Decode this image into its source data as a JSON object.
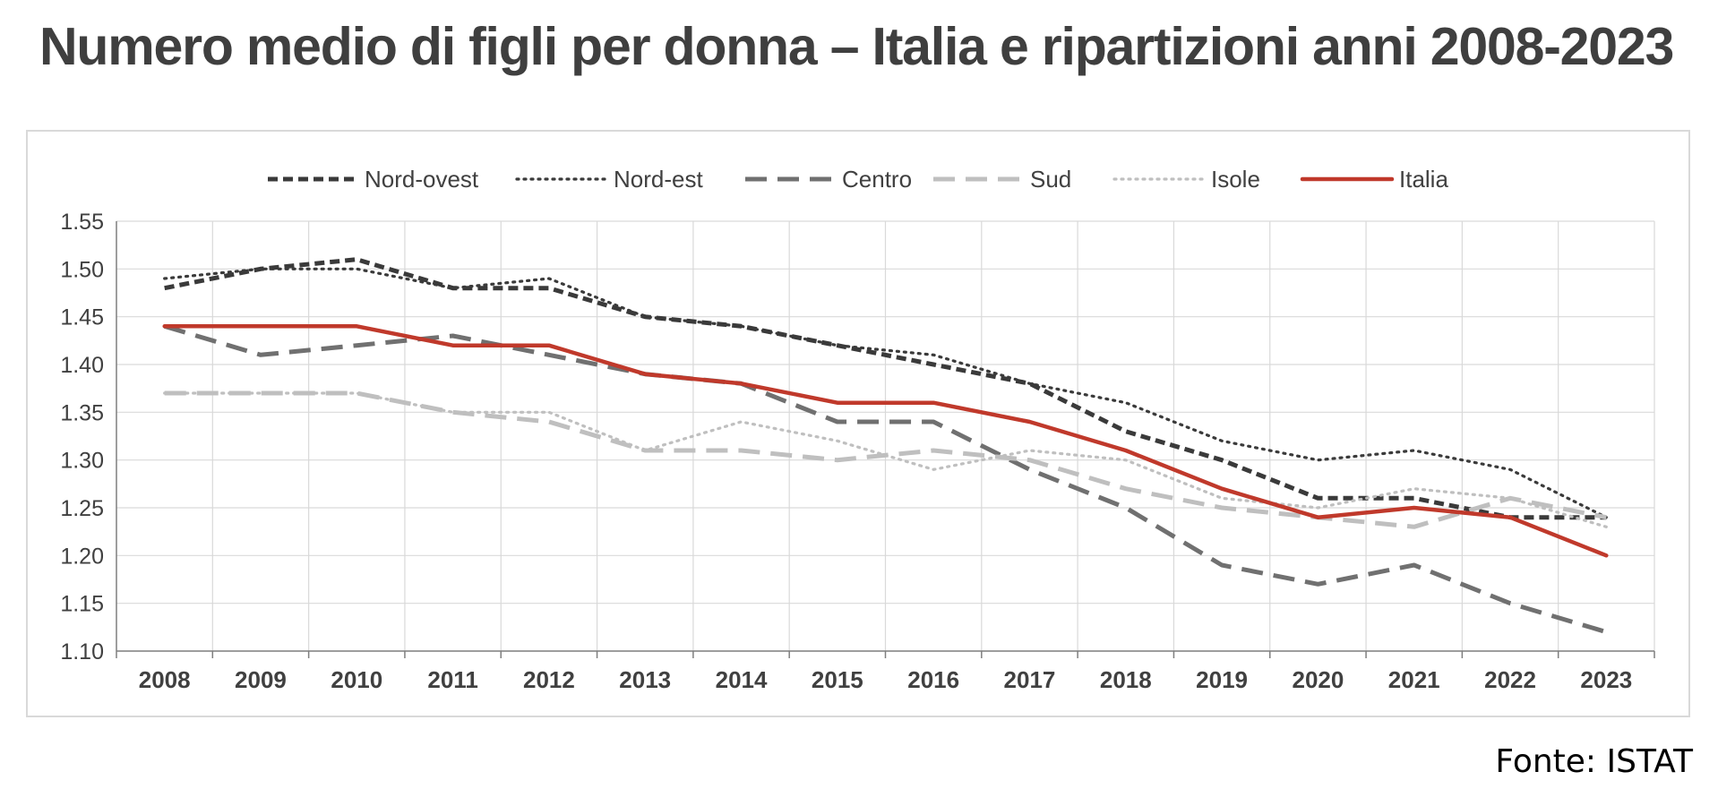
{
  "chart_data": {
    "type": "line",
    "title": "Numero medio di figli per donna – Italia e ripartizioni anni  2008-2023",
    "xlabel": "",
    "ylabel": "",
    "x": [
      "2008",
      "2009",
      "2010",
      "2011",
      "2012",
      "2013",
      "2014",
      "2015",
      "2016",
      "2017",
      "2018",
      "2019",
      "2020",
      "2021",
      "2022",
      "2023"
    ],
    "ylim": [
      1.1,
      1.55
    ],
    "yticks": [
      "1.10",
      "1.15",
      "1.20",
      "1.25",
      "1.30",
      "1.35",
      "1.40",
      "1.45",
      "1.50",
      "1.55"
    ],
    "grid": true,
    "legend_position": "top",
    "series": [
      {
        "name": "Nord-ovest",
        "color": "#3a3a3a",
        "style": "short-dash",
        "values": [
          1.48,
          1.5,
          1.51,
          1.48,
          1.48,
          1.45,
          1.44,
          1.42,
          1.4,
          1.38,
          1.33,
          1.3,
          1.26,
          1.26,
          1.24,
          1.24
        ]
      },
      {
        "name": "Nord-est",
        "color": "#3a3a3a",
        "style": "dotted",
        "values": [
          1.49,
          1.5,
          1.5,
          1.48,
          1.49,
          1.45,
          1.44,
          1.42,
          1.41,
          1.38,
          1.36,
          1.32,
          1.3,
          1.31,
          1.29,
          1.24
        ]
      },
      {
        "name": "Centro",
        "color": "#707070",
        "style": "long-dash",
        "values": [
          1.44,
          1.41,
          1.42,
          1.43,
          1.41,
          1.39,
          1.38,
          1.34,
          1.34,
          1.29,
          1.25,
          1.19,
          1.17,
          1.19,
          1.15,
          1.12
        ]
      },
      {
        "name": "Sud",
        "color": "#bfbfbf",
        "style": "long-dash",
        "values": [
          1.37,
          1.37,
          1.37,
          1.35,
          1.34,
          1.31,
          1.31,
          1.3,
          1.31,
          1.3,
          1.27,
          1.25,
          1.24,
          1.23,
          1.26,
          1.24
        ]
      },
      {
        "name": "Isole",
        "color": "#bfbfbf",
        "style": "dotted",
        "values": [
          1.37,
          1.37,
          1.37,
          1.35,
          1.35,
          1.31,
          1.34,
          1.32,
          1.29,
          1.31,
          1.3,
          1.26,
          1.25,
          1.27,
          1.26,
          1.23
        ]
      },
      {
        "name": "Italia",
        "color": "#c0392b",
        "style": "solid",
        "values": [
          1.44,
          1.44,
          1.44,
          1.42,
          1.42,
          1.39,
          1.38,
          1.36,
          1.36,
          1.34,
          1.31,
          1.27,
          1.24,
          1.25,
          1.24,
          1.2
        ]
      }
    ]
  },
  "source": "Fonte: ISTAT"
}
